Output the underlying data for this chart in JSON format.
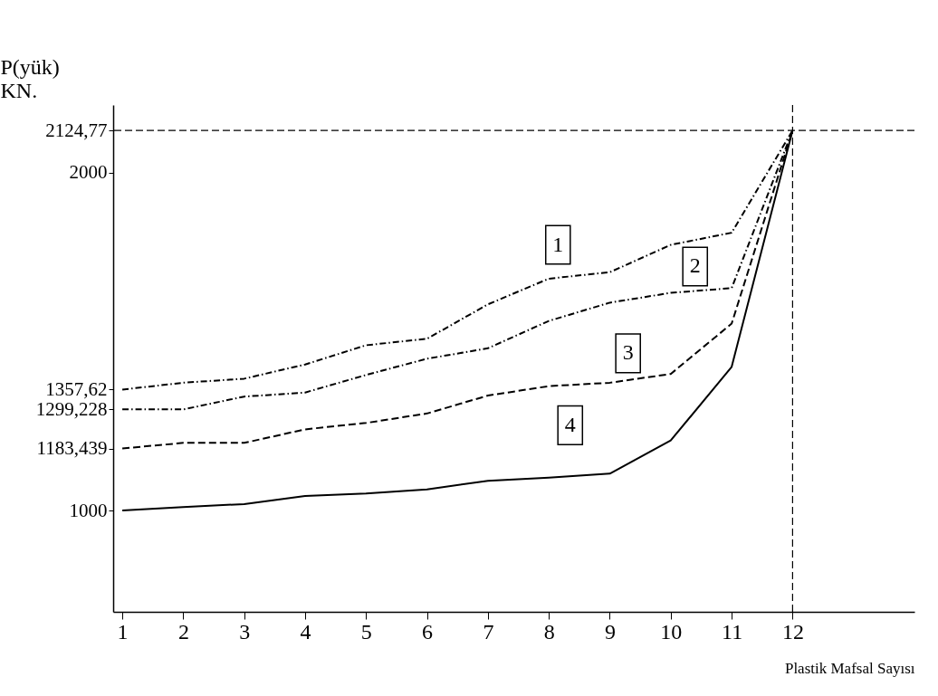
{
  "chart_data": {
    "type": "line",
    "xlabel": "Plastik Mafsal Sayısı",
    "ylabel": "P(yük)\nKN.",
    "x": [
      1,
      2,
      3,
      4,
      5,
      6,
      7,
      8,
      9,
      10,
      11,
      12
    ],
    "xlim": [
      0.85,
      14
    ],
    "xticks": [
      1,
      2,
      3,
      4,
      5,
      6,
      7,
      8,
      9,
      10,
      11,
      12
    ],
    "ylim": [
      700,
      2200
    ],
    "yticks": [
      1000,
      {
        "value": 1183.439,
        "label": "1183,439"
      },
      {
        "value": 1299.228,
        "label": "1299,228"
      },
      {
        "value": 1357.62,
        "label": "1357,62"
      },
      2000,
      {
        "value": 2124.77,
        "label": "2124,77"
      }
    ],
    "series": [
      {
        "color": "#000000",
        "line_style": "dotted",
        "values": [
          1357.62,
          1378,
          1390,
          1432,
          1489,
          1508,
          1610,
          1686,
          1705,
          1786,
          1822,
          2124.77
        ]
      },
      {
        "color": "#000000",
        "line_style": "dotted",
        "values": [
          1299.228,
          1299,
          1337,
          1349,
          1401,
          1449,
          1480,
          1561,
          1615,
          1644,
          1658,
          2124.77
        ]
      },
      {
        "color": "#000000",
        "line_style": "dashed",
        "values": [
          1183.439,
          1200,
          1200,
          1240,
          1259,
          1287,
          1340,
          1368,
          1378,
          1404,
          1553,
          2124.77
        ]
      },
      {
        "color": "#000000",
        "line_style": "solid",
        "values": [
          1000,
          1010,
          1019,
          1043,
          1050,
          1062,
          1088,
          1097,
          1109,
          1207,
          1425,
          2124.77
        ]
      }
    ],
    "ref_lines": [
      {
        "axis": "y",
        "value": 2124.77,
        "line_style": "dashed",
        "color": "#000000"
      },
      {
        "axis": "x",
        "value": 12,
        "line_style": "dashed",
        "color": "#000000"
      }
    ],
    "annotations": [
      {
        "text": "1",
        "x": 8.15,
        "y": 1786
      },
      {
        "text": "2",
        "x": 10.4,
        "y": 1722
      },
      {
        "text": "3",
        "x": 9.3,
        "y": 1465
      },
      {
        "text": "4",
        "x": 8.35,
        "y": 1252
      }
    ],
    "grid": false,
    "marker": "none"
  }
}
